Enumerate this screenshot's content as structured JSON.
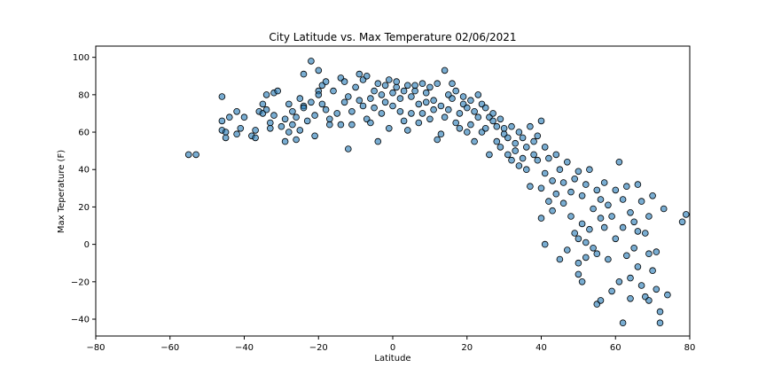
{
  "chart_data": {
    "type": "scatter",
    "title": "City Latitude vs. Max Temperature 02/06/2021",
    "xlabel": "Latitude",
    "ylabel": "Max Teperature (F)",
    "xlim": [
      -80,
      80
    ],
    "ylim": [
      -49,
      106
    ],
    "xticks": [
      -80,
      -60,
      -40,
      -20,
      0,
      20,
      40,
      60,
      80
    ],
    "yticks": [
      -40,
      -20,
      0,
      20,
      40,
      60,
      80,
      100
    ],
    "grid": false,
    "legend": "none",
    "marker_color": "#1f77b4",
    "marker_edge_color": "#000000",
    "marker_alpha": 0.6,
    "points": [
      [
        -55,
        48
      ],
      [
        -53,
        48
      ],
      [
        -46,
        79
      ],
      [
        -46,
        61
      ],
      [
        -45,
        60
      ],
      [
        -46,
        66
      ],
      [
        -45,
        57
      ],
      [
        -44,
        68
      ],
      [
        -42,
        71
      ],
      [
        -42,
        59
      ],
      [
        -41,
        62
      ],
      [
        -40,
        68
      ],
      [
        -38,
        58
      ],
      [
        -37,
        57
      ],
      [
        -37,
        61
      ],
      [
        -36,
        71
      ],
      [
        -35,
        70
      ],
      [
        -35,
        75
      ],
      [
        -34,
        80
      ],
      [
        -34,
        72
      ],
      [
        -33,
        65
      ],
      [
        -33,
        62
      ],
      [
        -32,
        69
      ],
      [
        -32,
        81
      ],
      [
        -31,
        82
      ],
      [
        -30,
        63
      ],
      [
        -29,
        67
      ],
      [
        -29,
        55
      ],
      [
        -28,
        60
      ],
      [
        -28,
        75
      ],
      [
        -27,
        71
      ],
      [
        -27,
        64
      ],
      [
        -26,
        56
      ],
      [
        -26,
        68
      ],
      [
        -25,
        78
      ],
      [
        -25,
        61
      ],
      [
        -24,
        74
      ],
      [
        -24,
        91
      ],
      [
        -24,
        73
      ],
      [
        -23,
        66
      ],
      [
        -22,
        98
      ],
      [
        -22,
        76
      ],
      [
        -21,
        69
      ],
      [
        -21,
        58
      ],
      [
        -20,
        93
      ],
      [
        -20,
        82
      ],
      [
        -20,
        80
      ],
      [
        -19,
        75
      ],
      [
        -19,
        85
      ],
      [
        -18,
        87
      ],
      [
        -18,
        72
      ],
      [
        -17,
        64
      ],
      [
        -17,
        67
      ],
      [
        -16,
        82
      ],
      [
        -15,
        70
      ],
      [
        -14,
        64
      ],
      [
        -14,
        89
      ],
      [
        -13,
        87
      ],
      [
        -13,
        76
      ],
      [
        -12,
        79
      ],
      [
        -12,
        51
      ],
      [
        -11,
        64
      ],
      [
        -11,
        71
      ],
      [
        -10,
        84
      ],
      [
        -9,
        91
      ],
      [
        -9,
        77
      ],
      [
        -8,
        88
      ],
      [
        -8,
        74
      ],
      [
        -7,
        90
      ],
      [
        -7,
        67
      ],
      [
        -6,
        65
      ],
      [
        -6,
        78
      ],
      [
        -5,
        82
      ],
      [
        -5,
        73
      ],
      [
        -4,
        86
      ],
      [
        -4,
        55
      ],
      [
        -3,
        70
      ],
      [
        -3,
        80
      ],
      [
        -2,
        85
      ],
      [
        -2,
        76
      ],
      [
        -1,
        88
      ],
      [
        -1,
        62
      ],
      [
        0,
        81
      ],
      [
        0,
        74
      ],
      [
        1,
        84
      ],
      [
        1,
        87
      ],
      [
        2,
        78
      ],
      [
        2,
        71
      ],
      [
        3,
        82
      ],
      [
        3,
        66
      ],
      [
        4,
        85
      ],
      [
        4,
        61
      ],
      [
        5,
        79
      ],
      [
        5,
        70
      ],
      [
        6,
        82
      ],
      [
        6,
        85
      ],
      [
        7,
        75
      ],
      [
        7,
        65
      ],
      [
        8,
        86
      ],
      [
        8,
        70
      ],
      [
        9,
        76
      ],
      [
        9,
        81
      ],
      [
        10,
        84
      ],
      [
        10,
        67
      ],
      [
        11,
        72
      ],
      [
        11,
        77
      ],
      [
        12,
        86
      ],
      [
        12,
        56
      ],
      [
        13,
        74
      ],
      [
        13,
        59
      ],
      [
        14,
        93
      ],
      [
        14,
        68
      ],
      [
        15,
        80
      ],
      [
        15,
        72
      ],
      [
        16,
        86
      ],
      [
        16,
        78
      ],
      [
        17,
        82
      ],
      [
        17,
        65
      ],
      [
        18,
        70
      ],
      [
        18,
        62
      ],
      [
        19,
        79
      ],
      [
        19,
        75
      ],
      [
        20,
        60
      ],
      [
        20,
        73
      ],
      [
        21,
        64
      ],
      [
        21,
        77
      ],
      [
        22,
        71
      ],
      [
        22,
        55
      ],
      [
        23,
        68
      ],
      [
        23,
        80
      ],
      [
        24,
        60
      ],
      [
        24,
        75
      ],
      [
        25,
        73
      ],
      [
        25,
        62
      ],
      [
        26,
        68
      ],
      [
        26,
        48
      ],
      [
        27,
        66
      ],
      [
        27,
        70
      ],
      [
        28,
        55
      ],
      [
        28,
        63
      ],
      [
        29,
        67
      ],
      [
        29,
        52
      ],
      [
        30,
        59
      ],
      [
        30,
        62
      ],
      [
        31,
        48
      ],
      [
        31,
        57
      ],
      [
        32,
        63
      ],
      [
        32,
        45
      ],
      [
        33,
        54
      ],
      [
        33,
        50
      ],
      [
        34,
        42
      ],
      [
        34,
        60
      ],
      [
        35,
        57
      ],
      [
        35,
        46
      ],
      [
        36,
        52
      ],
      [
        36,
        40
      ],
      [
        37,
        63
      ],
      [
        37,
        31
      ],
      [
        38,
        48
      ],
      [
        38,
        55
      ],
      [
        39,
        45
      ],
      [
        39,
        58
      ],
      [
        40,
        66
      ],
      [
        40,
        30
      ],
      [
        40,
        14
      ],
      [
        41,
        52
      ],
      [
        41,
        0
      ],
      [
        41,
        38
      ],
      [
        42,
        23
      ],
      [
        42,
        46
      ],
      [
        43,
        18
      ],
      [
        43,
        34
      ],
      [
        44,
        27
      ],
      [
        44,
        48
      ],
      [
        45,
        40
      ],
      [
        45,
        -8
      ],
      [
        46,
        33
      ],
      [
        46,
        22
      ],
      [
        47,
        -3
      ],
      [
        47,
        44
      ],
      [
        48,
        15
      ],
      [
        48,
        28
      ],
      [
        49,
        35
      ],
      [
        49,
        6
      ],
      [
        50,
        39
      ],
      [
        50,
        -10
      ],
      [
        50,
        3
      ],
      [
        50,
        -16
      ],
      [
        51,
        26
      ],
      [
        51,
        11
      ],
      [
        51,
        -20
      ],
      [
        52,
        32
      ],
      [
        52,
        1
      ],
      [
        52,
        -7
      ],
      [
        53,
        40
      ],
      [
        53,
        8
      ],
      [
        54,
        19
      ],
      [
        54,
        -2
      ],
      [
        55,
        29
      ],
      [
        55,
        -5
      ],
      [
        55,
        -32
      ],
      [
        56,
        14
      ],
      [
        56,
        24
      ],
      [
        56,
        -30
      ],
      [
        57,
        9
      ],
      [
        57,
        33
      ],
      [
        58,
        -8
      ],
      [
        58,
        21
      ],
      [
        59,
        15
      ],
      [
        59,
        -25
      ],
      [
        60,
        29
      ],
      [
        60,
        3
      ],
      [
        61,
        44
      ],
      [
        61,
        -20
      ],
      [
        62,
        24
      ],
      [
        62,
        9
      ],
      [
        62,
        -42
      ],
      [
        63,
        -6
      ],
      [
        63,
        31
      ],
      [
        64,
        -18
      ],
      [
        64,
        17
      ],
      [
        64,
        -29
      ],
      [
        65,
        12
      ],
      [
        65,
        -2
      ],
      [
        66,
        32
      ],
      [
        66,
        -12
      ],
      [
        66,
        7
      ],
      [
        67,
        -22
      ],
      [
        67,
        23
      ],
      [
        68,
        -28
      ],
      [
        68,
        6
      ],
      [
        69,
        -5
      ],
      [
        69,
        15
      ],
      [
        69,
        -30
      ],
      [
        70,
        -14
      ],
      [
        70,
        26
      ],
      [
        71,
        -24
      ],
      [
        71,
        -4
      ],
      [
        72,
        -36
      ],
      [
        72,
        -42
      ],
      [
        73,
        19
      ],
      [
        74,
        -27
      ],
      [
        78,
        12
      ],
      [
        79,
        16
      ]
    ]
  }
}
